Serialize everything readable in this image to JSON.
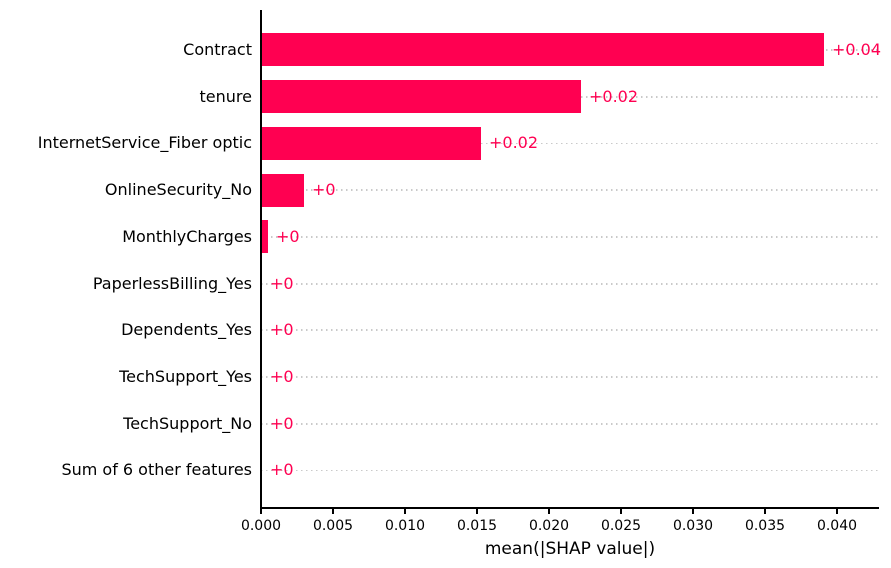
{
  "chart_data": {
    "type": "bar",
    "orientation": "horizontal",
    "title": "",
    "xlabel": "mean(|SHAP value|)",
    "ylabel": "",
    "categories": [
      "Contract",
      "tenure",
      "InternetService_Fiber optic",
      "OnlineSecurity_No",
      "MonthlyCharges",
      "PaperlessBilling_Yes",
      "Dependents_Yes",
      "TechSupport_Yes",
      "TechSupport_No",
      "Sum of 6 other features"
    ],
    "values": [
      0.0391,
      0.0222,
      0.0153,
      0.003,
      0.0005,
      0.0001,
      0.0001,
      8e-05,
      6e-05,
      5e-05
    ],
    "bar_value_labels": [
      "+0.04",
      "+0.02",
      "+0.02",
      "+0",
      "+0",
      "+0",
      "+0",
      "+0",
      "+0",
      "+0"
    ],
    "xlim": [
      0,
      0.0428
    ],
    "xtick_values": [
      0.0,
      0.005,
      0.01,
      0.015,
      0.02,
      0.025,
      0.03,
      0.035,
      0.04
    ],
    "xtick_labels": [
      "0.000",
      "0.005",
      "0.010",
      "0.015",
      "0.020",
      "0.025",
      "0.030",
      "0.035",
      "0.040"
    ],
    "grid": "horizontal-dotted",
    "legend": null,
    "colors": {
      "bar": "#ff0051",
      "value_label": "#ff0051",
      "gridline": "#c9c9c9",
      "axis": "#000000",
      "text": "#000000",
      "background": "#ffffff"
    }
  }
}
